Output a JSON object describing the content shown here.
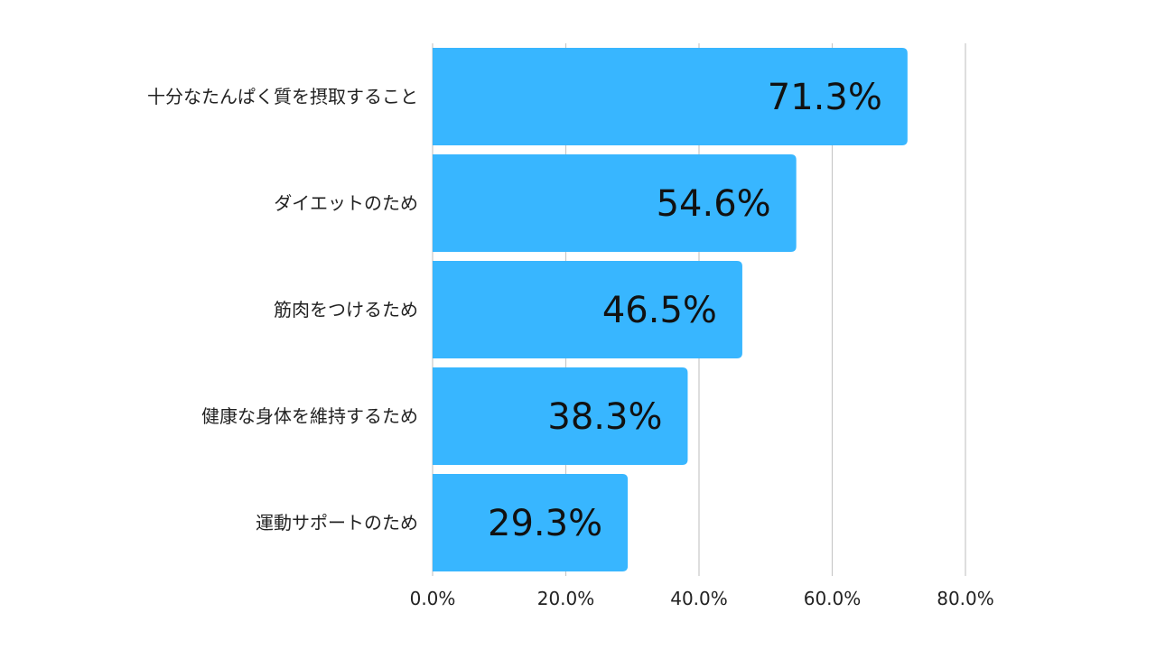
{
  "chart_data": {
    "type": "bar",
    "orientation": "horizontal",
    "categories": [
      "十分なたんぱく質を摂取すること",
      "ダイエットのため",
      "筋肉をつけるため",
      "健康な身体を維持するため",
      "運動サポートのため"
    ],
    "values": [
      71.3,
      54.6,
      46.5,
      38.3,
      29.3
    ],
    "value_labels": [
      "71.3%",
      "54.6%",
      "46.5%",
      "38.3%",
      "29.3%"
    ],
    "x_ticks": [
      0,
      20,
      40,
      60,
      80
    ],
    "x_tick_labels": [
      "0.0%",
      "20.0%",
      "40.0%",
      "60.0%",
      "80.0%"
    ],
    "xlim": [
      0,
      80
    ],
    "grid": true,
    "legend": "none",
    "title": "",
    "xlabel": "",
    "ylabel": "",
    "colors": {
      "bar": "#38B6FF",
      "grid": "#C8C8C8",
      "text": "#222222"
    }
  }
}
